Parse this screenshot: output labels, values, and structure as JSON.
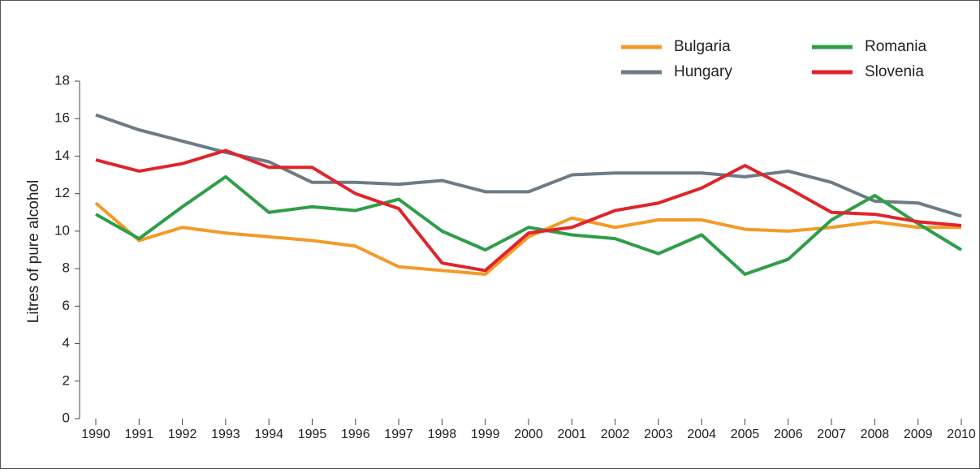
{
  "chart_data": {
    "type": "line",
    "ylabel": "Litres of pure alcohol",
    "categories": [
      "1990",
      "1991",
      "1992",
      "1993",
      "1994",
      "1995",
      "1996",
      "1997",
      "1998",
      "1999",
      "2000",
      "2001",
      "2002",
      "2003",
      "2004",
      "2005",
      "2006",
      "2007",
      "2008",
      "2009",
      "2010"
    ],
    "series": [
      {
        "name": "Bulgaria",
        "color": "#f29b26",
        "values": [
          11.5,
          9.5,
          10.2,
          9.9,
          9.7,
          9.5,
          9.2,
          8.1,
          7.9,
          7.7,
          9.7,
          10.7,
          10.2,
          10.6,
          10.6,
          10.1,
          10.0,
          10.2,
          10.5,
          10.2,
          10.2
        ]
      },
      {
        "name": "Hungary",
        "color": "#6d7b86",
        "values": [
          16.2,
          15.4,
          14.8,
          14.2,
          13.7,
          12.6,
          12.6,
          12.5,
          12.7,
          12.1,
          12.1,
          13.0,
          13.1,
          13.1,
          13.1,
          12.9,
          13.2,
          12.6,
          11.6,
          11.5,
          10.8
        ]
      },
      {
        "name": "Romania",
        "color": "#2e9e48",
        "values": [
          10.9,
          9.6,
          11.3,
          12.9,
          11.0,
          11.3,
          11.1,
          11.7,
          10.0,
          9.0,
          10.2,
          9.8,
          9.6,
          8.8,
          9.8,
          7.7,
          8.5,
          10.6,
          11.9,
          10.4,
          9.0
        ]
      },
      {
        "name": "Slovenia",
        "color": "#e0242c",
        "values": [
          13.8,
          13.2,
          13.6,
          14.3,
          13.4,
          13.4,
          12.0,
          11.2,
          8.3,
          7.9,
          9.9,
          10.2,
          11.1,
          11.5,
          12.3,
          13.5,
          12.3,
          11.0,
          10.9,
          10.5,
          10.3
        ]
      }
    ],
    "ylim": [
      0,
      18
    ],
    "yticks": [
      0,
      2,
      4,
      6,
      8,
      10,
      12,
      14,
      16,
      18
    ],
    "legend": "top-right"
  }
}
